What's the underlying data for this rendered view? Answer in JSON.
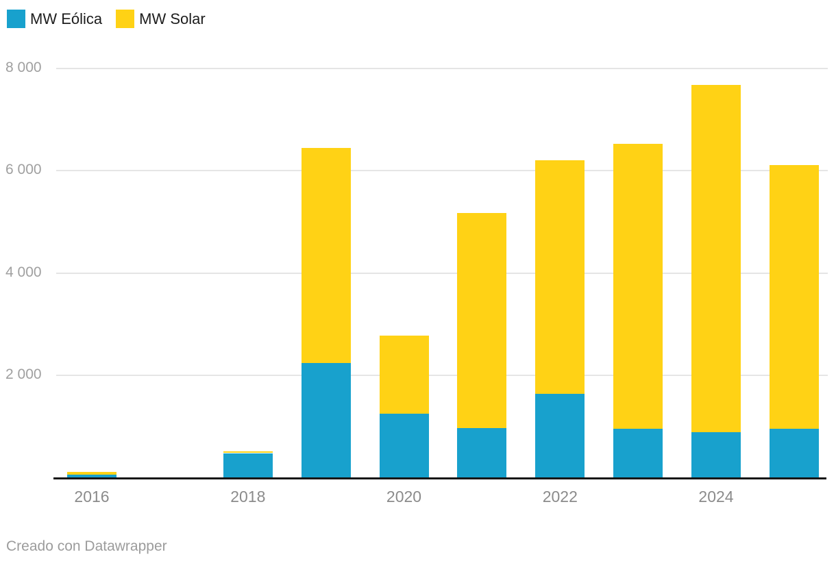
{
  "chart_data": {
    "type": "bar",
    "stacked": true,
    "title": "",
    "x": [
      2016,
      2017,
      2018,
      2019,
      2020,
      2021,
      2022,
      2023,
      2024,
      2025
    ],
    "series": [
      {
        "id": "eolica",
        "name": "MW Eólica",
        "color": "#18a1cd",
        "values": [
          50,
          0,
          475,
          2240,
          1250,
          970,
          1640,
          950,
          880,
          950
        ]
      },
      {
        "id": "solar",
        "name": "MW Solar",
        "color": "#ffd215",
        "values": [
          60,
          0,
          35,
          4210,
          1530,
          4200,
          4560,
          5580,
          6800,
          5160
        ]
      }
    ],
    "ylim": [
      0,
      8000
    ],
    "yticks": [
      2000,
      4000,
      6000,
      8000
    ],
    "ytick_labels": [
      "2 000",
      "4 000",
      "6 000",
      "8 000"
    ],
    "xtick_labels": [
      "2016",
      "2018",
      "2020",
      "2022",
      "2024"
    ],
    "grid": true,
    "legend_position": "top-left"
  },
  "legend": {
    "items": [
      {
        "id": "eolica",
        "label": "MW Eólica",
        "color": "#18a1cd"
      },
      {
        "id": "solar",
        "label": "MW Solar",
        "color": "#ffd215"
      }
    ]
  },
  "footer": {
    "credit": "Creado con Datawrapper"
  },
  "colors": {
    "background": "#ffffff",
    "gridline": "#e5e5e5",
    "axis_line": "#161616",
    "y_tick_text": "#a0a0a0",
    "x_tick_text": "#8b8b8b",
    "legend_text": "#1d1d1d",
    "credit_text": "#9c9c9c"
  }
}
